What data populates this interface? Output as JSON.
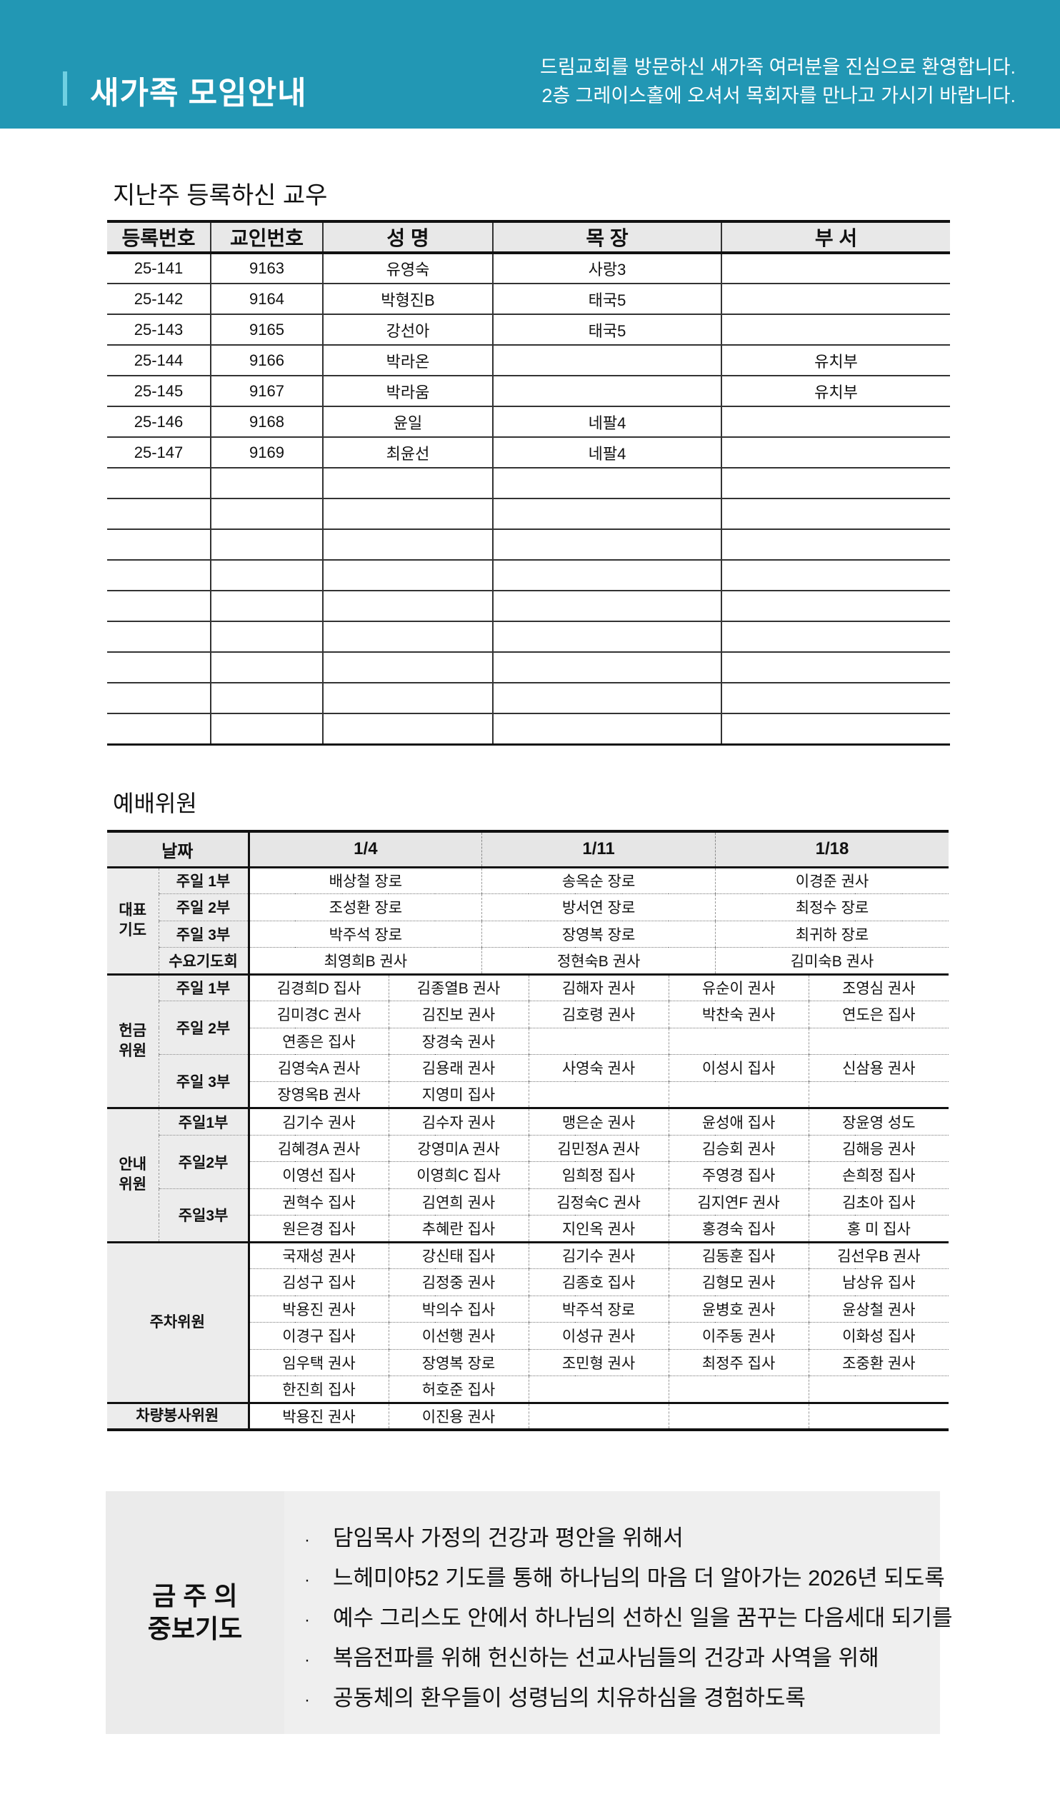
{
  "header": {
    "title": "새가족 모임안내",
    "subtitle_lines": [
      "드림교회를 방문하신 새가족 여러분을 진심으로 환영합니다.",
      "2층 그레이스홀에 오셔서 목회자를 만나고 가시기 바랍니다."
    ],
    "bg_color": "#2297b4",
    "accent_color": "#6fd0e2"
  },
  "registrations": {
    "title": "지난주 등록하신 교우",
    "columns": [
      "등록번호",
      "교인번호",
      "성 명",
      "목 장",
      "부 서"
    ],
    "rows": [
      [
        "25-141",
        "9163",
        "유영숙",
        "사랑3",
        ""
      ],
      [
        "25-142",
        "9164",
        "박형진B",
        "태국5",
        ""
      ],
      [
        "25-143",
        "9165",
        "강선아",
        "태국5",
        ""
      ],
      [
        "25-144",
        "9166",
        "박라온",
        "",
        "유치부"
      ],
      [
        "25-145",
        "9167",
        "박라움",
        "",
        "유치부"
      ],
      [
        "25-146",
        "9168",
        "윤일",
        "네팔4",
        ""
      ],
      [
        "25-147",
        "9169",
        "최윤선",
        "네팔4",
        ""
      ],
      [
        "",
        "",
        "",
        "",
        ""
      ],
      [
        "",
        "",
        "",
        "",
        ""
      ],
      [
        "",
        "",
        "",
        "",
        ""
      ],
      [
        "",
        "",
        "",
        "",
        ""
      ],
      [
        "",
        "",
        "",
        "",
        ""
      ],
      [
        "",
        "",
        "",
        "",
        ""
      ],
      [
        "",
        "",
        "",
        "",
        ""
      ],
      [
        "",
        "",
        "",
        "",
        ""
      ],
      [
        "",
        "",
        "",
        "",
        ""
      ]
    ]
  },
  "worship": {
    "title": "예배위원",
    "date_label": "날짜",
    "dates": [
      "1/4",
      "1/11",
      "1/18"
    ],
    "groups": [
      {
        "label": "대표\n기도",
        "subs": [
          {
            "label": "주일 1부",
            "rows": [
              [
                "배상철 장로",
                "송옥순 장로",
                "이경준 권사"
              ]
            ]
          },
          {
            "label": "주일 2부",
            "rows": [
              [
                "조성환 장로",
                "방서연 장로",
                "최정수 장로"
              ]
            ]
          },
          {
            "label": "주일 3부",
            "rows": [
              [
                "박주석 장로",
                "장영복 장로",
                "최귀하 장로"
              ]
            ]
          },
          {
            "label": "수요기도회",
            "rows": [
              [
                "최영희B 권사",
                "정현숙B 권사",
                "김미숙B 권사"
              ]
            ]
          }
        ]
      },
      {
        "label": "헌금\n위원",
        "subs": [
          {
            "label": "주일 1부",
            "rows": [
              [
                "김경희D 집사",
                "김종열B 권사",
                "김해자 권사",
                "유순이 권사",
                "조영심 권사"
              ]
            ]
          },
          {
            "label": "주일 2부",
            "rows": [
              [
                "김미경C 권사",
                "김진보 권사",
                "김호령 권사",
                "박찬숙 권사",
                "연도은 집사"
              ],
              [
                "연종은 집사",
                "장경숙 권사",
                "",
                "",
                ""
              ]
            ]
          },
          {
            "label": "주일 3부",
            "rows": [
              [
                "김영숙A 권사",
                "김용래 권사",
                "사영숙 권사",
                "이성시 집사",
                "신삼용 권사"
              ],
              [
                "장영옥B 권사",
                "지영미 집사",
                "",
                "",
                ""
              ]
            ]
          }
        ]
      },
      {
        "label": "안내\n위원",
        "subs": [
          {
            "label": "주일1부",
            "rows": [
              [
                "김기수 권사",
                "김수자 권사",
                "맹은순 권사",
                "윤성애 집사",
                "장윤영 성도"
              ]
            ]
          },
          {
            "label": "주일2부",
            "rows": [
              [
                "김혜경A 권사",
                "강영미A 권사",
                "김민정A 권사",
                "김승회 권사",
                "김해응 권사"
              ],
              [
                "이영선 집사",
                "이영희C 집사",
                "임희정 집사",
                "주영경 집사",
                "손희정 집사"
              ]
            ]
          },
          {
            "label": "주일3부",
            "rows": [
              [
                "권혁수 집사",
                "김연희 권사",
                "김정숙C 권사",
                "김지연F 권사",
                "김초아 집사"
              ],
              [
                "원은경 집사",
                "추혜란 집사",
                "지인옥 권사",
                "홍경숙 집사",
                "홍  미 집사"
              ]
            ]
          }
        ]
      },
      {
        "label": "주차위원",
        "subs": [
          {
            "label": null,
            "rows": [
              [
                "국재성 권사",
                "강신태 집사",
                "김기수 권사",
                "김동훈 집사",
                "김선우B 권사"
              ],
              [
                "김성구 집사",
                "김정중 권사",
                "김종호 집사",
                "김형모 권사",
                "남상유 집사"
              ],
              [
                "박용진 권사",
                "박의수 집사",
                "박주석 장로",
                "윤병호 권사",
                "윤상철 권사"
              ],
              [
                "이경구 집사",
                "이선행 권사",
                "이성규 권사",
                "이주동 권사",
                "이화성 집사"
              ],
              [
                "임우택 권사",
                "장영복 장로",
                "조민형 권사",
                "최정주 집사",
                "조중환 권사"
              ],
              [
                "한진희 집사",
                "허호준 집사",
                "",
                "",
                ""
              ]
            ]
          }
        ]
      },
      {
        "label": "차량봉사위원",
        "subs": [
          {
            "label": null,
            "rows": [
              [
                "박용진 권사",
                "이진용 권사",
                "",
                "",
                ""
              ]
            ]
          }
        ]
      }
    ]
  },
  "prayer": {
    "title_lines": [
      "금 주 의",
      "중보기도"
    ],
    "bullet": "·",
    "items": [
      "담임목사 가정의 건강과 평안을 위해서",
      "느헤미야52 기도를 통해 하나님의 마음 더 알아가는 2026년 되도록",
      "예수 그리스도 안에서 하나님의 선하신 일을 꿈꾸는 다음세대 되기를",
      "복음전파를 위해 헌신하는 선교사님들의 건강과 사역을 위해",
      "공동체의 환우들이 성령님의 치유하심을 경험하도록"
    ]
  }
}
